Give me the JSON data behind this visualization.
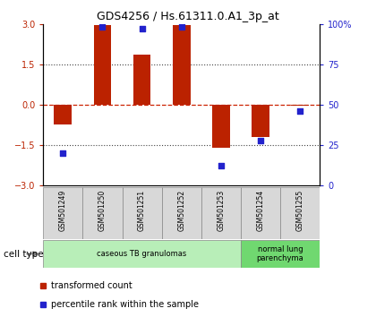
{
  "title": "GDS4256 / Hs.61311.0.A1_3p_at",
  "samples": [
    "GSM501249",
    "GSM501250",
    "GSM501251",
    "GSM501252",
    "GSM501253",
    "GSM501254",
    "GSM501255"
  ],
  "red_values": [
    -0.75,
    2.95,
    1.85,
    2.95,
    -1.6,
    -1.2,
    -0.05
  ],
  "blue_values_pct": [
    20,
    98,
    97,
    98,
    12,
    28,
    46
  ],
  "ylim_left": [
    -3,
    3
  ],
  "ylim_right": [
    0,
    100
  ],
  "yticks_left": [
    -3,
    -1.5,
    0,
    1.5,
    3
  ],
  "yticks_right": [
    0,
    25,
    50,
    75,
    100
  ],
  "ytick_labels_right": [
    "0",
    "25",
    "50",
    "75",
    "100%"
  ],
  "cell_type_groups": [
    {
      "label": "caseous TB granulomas",
      "start": 0,
      "end": 5,
      "color": "#b8eeb8"
    },
    {
      "label": "normal lung\nparenchyma",
      "start": 5,
      "end": 7,
      "color": "#70d870"
    }
  ],
  "cell_type_label": "cell type",
  "legend_red": "transformed count",
  "legend_blue": "percentile rank within the sample",
  "bar_width": 0.45,
  "bar_color_red": "#bb2200",
  "bar_color_blue": "#2222cc",
  "dotted_color": "#444444",
  "zero_line_color": "#cc2200",
  "bg_color": "#ffffff",
  "title_fontsize": 9,
  "tick_fontsize": 7,
  "label_fontsize": 6.5,
  "legend_fontsize": 7
}
